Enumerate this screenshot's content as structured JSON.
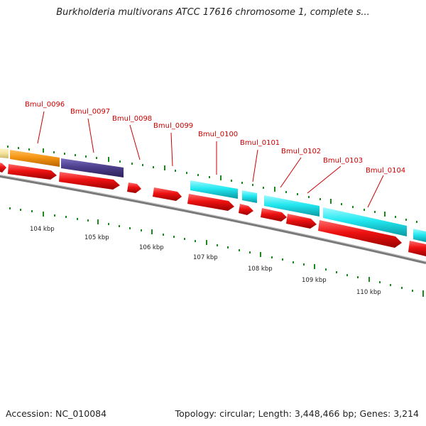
{
  "header": {
    "title": "Burkholderia multivorans ATCC 17616 chromosome 1, complete s..."
  },
  "footer": {
    "accession": "Accession: NC_010084",
    "summary": "Topology: circular; Length: 3,448,466 bp; Genes: 3,214"
  },
  "gene_labels": [
    "Bmul_0096",
    "Bmul_0097",
    "Bmul_0098",
    "Bmul_0099",
    "Bmul_0100",
    "Bmul_0101",
    "Bmul_0102",
    "Bmul_0103",
    "Bmul_0104"
  ],
  "kbp_labels": [
    "104 kbp",
    "105 kbp",
    "106 kbp",
    "107 kbp",
    "108 kbp",
    "109 kbp",
    "110 kbp"
  ],
  "colors": {
    "cds_red": "#ee1111",
    "cyan": "#22e8f0",
    "orange": "#f59412",
    "purple": "#4d3f8c",
    "pale_yellow": "#f3e39a",
    "tick_green": "#1a8a1a",
    "label_red": "#cc0000",
    "backbone": "#888888"
  }
}
